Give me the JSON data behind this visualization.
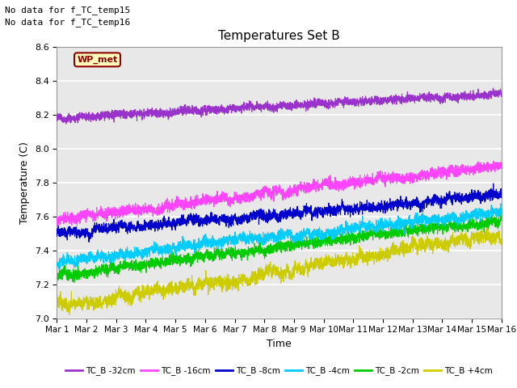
{
  "title": "Temperatures Set B",
  "ylabel": "Temperature (C)",
  "xlabel": "Time",
  "annotations": [
    "No data for f_TC_temp15",
    "No data for f_TC_temp16"
  ],
  "wp_met_label": "WP_met",
  "ylim": [
    7.0,
    8.6
  ],
  "tick_labels": [
    "Mar 1",
    "Mar 2",
    "Mar 3",
    "Mar 4",
    "Mar 5",
    "Mar 6",
    "Mar 7",
    "Mar 8",
    "Mar 9",
    "Mar 10",
    "Mar 11",
    "Mar 12",
    "Mar 13",
    "Mar 14",
    "Mar 15",
    "Mar 16"
  ],
  "legend_entries": [
    {
      "label": "TC_B -32cm",
      "color": "#9933cc"
    },
    {
      "label": "TC_B -16cm",
      "color": "#ff44ff"
    },
    {
      "label": "TC_B -8cm",
      "color": "#0000cc"
    },
    {
      "label": "TC_B -4cm",
      "color": "#00ccff"
    },
    {
      "label": "TC_B -2cm",
      "color": "#00cc00"
    },
    {
      "label": "TC_B +4cm",
      "color": "#cccc00"
    }
  ],
  "plot_bg_color": "#e8e8e8",
  "fig_bg_color": "#ffffff",
  "grid_color": "#ffffff",
  "days": 15,
  "n_points": 3600
}
